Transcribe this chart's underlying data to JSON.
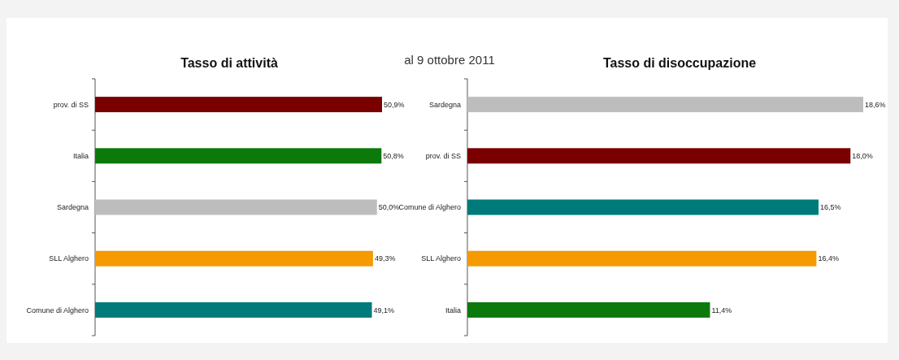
{
  "chart_data": [
    {
      "type": "bar",
      "orientation": "horizontal",
      "title": "Tasso di attività",
      "categories": [
        "prov. di SS",
        "Italia",
        "Sardegna",
        "SLL Alghero",
        "Comune di Alghero"
      ],
      "values": [
        50.9,
        50.8,
        50.0,
        49.3,
        49.1
      ],
      "value_labels": [
        "50,9%",
        "50,8%",
        "50,0%",
        "49,3%",
        "49,1%"
      ],
      "colors": [
        "#7a0000",
        "#0b7a0b",
        "#bdbdbd",
        "#f59a00",
        "#007a7a"
      ]
    },
    {
      "type": "bar",
      "orientation": "horizontal",
      "title": "Tasso di disoccupazione",
      "subtitle": "al 9 ottobre 2011",
      "categories": [
        "Sardegna",
        "prov. di SS",
        "Comune di Alghero",
        "SLL Alghero",
        "Italia"
      ],
      "values": [
        18.6,
        18.0,
        16.5,
        16.4,
        11.4
      ],
      "value_labels": [
        "18,6%",
        "18,0%",
        "16,5%",
        "16,4%",
        "11,4%"
      ],
      "colors": [
        "#bdbdbd",
        "#7a0000",
        "#007a7a",
        "#f59a00",
        "#0b7a0b"
      ]
    }
  ]
}
